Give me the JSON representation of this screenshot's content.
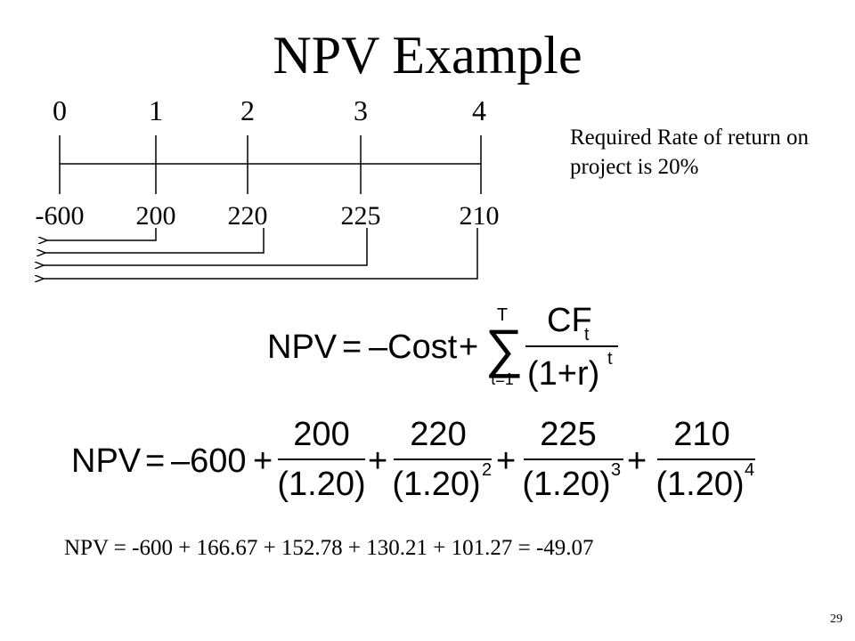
{
  "slide": {
    "title": "NPV Example",
    "slide_number": "29"
  },
  "timeline": {
    "periods": [
      "0",
      "1",
      "2",
      "3",
      "4"
    ],
    "cash_flows": [
      "-600",
      "200",
      "220",
      "225",
      "210"
    ]
  },
  "rate_note": "Required Rate of return on project is 20%",
  "general_formula": {
    "lhs": "NPV",
    "equals": "=",
    "minus_cost": "–Cost",
    "plus": "+",
    "sum_symbol": "∑",
    "sum_upper": "T",
    "sum_lower": "t=1",
    "numerator": "CF",
    "numerator_sub": "t",
    "denominator": "(1+r)",
    "denominator_exp": "t"
  },
  "numeric_formula": {
    "lhs": "NPV",
    "equals": "=",
    "initial": "–600",
    "plus": "+",
    "terms": [
      {
        "numerator": "200",
        "denominator": "(1.20)",
        "exponent": ""
      },
      {
        "numerator": "220",
        "denominator": "(1.20)",
        "exponent": "2"
      },
      {
        "numerator": "225",
        "denominator": "(1.20)",
        "exponent": "3"
      },
      {
        "numerator": "210",
        "denominator": "(1.20)",
        "exponent": "4"
      }
    ]
  },
  "result_line": "NPV = -600 + 166.67 + 152.78 + 130.21 + 101.27 = -49.07"
}
